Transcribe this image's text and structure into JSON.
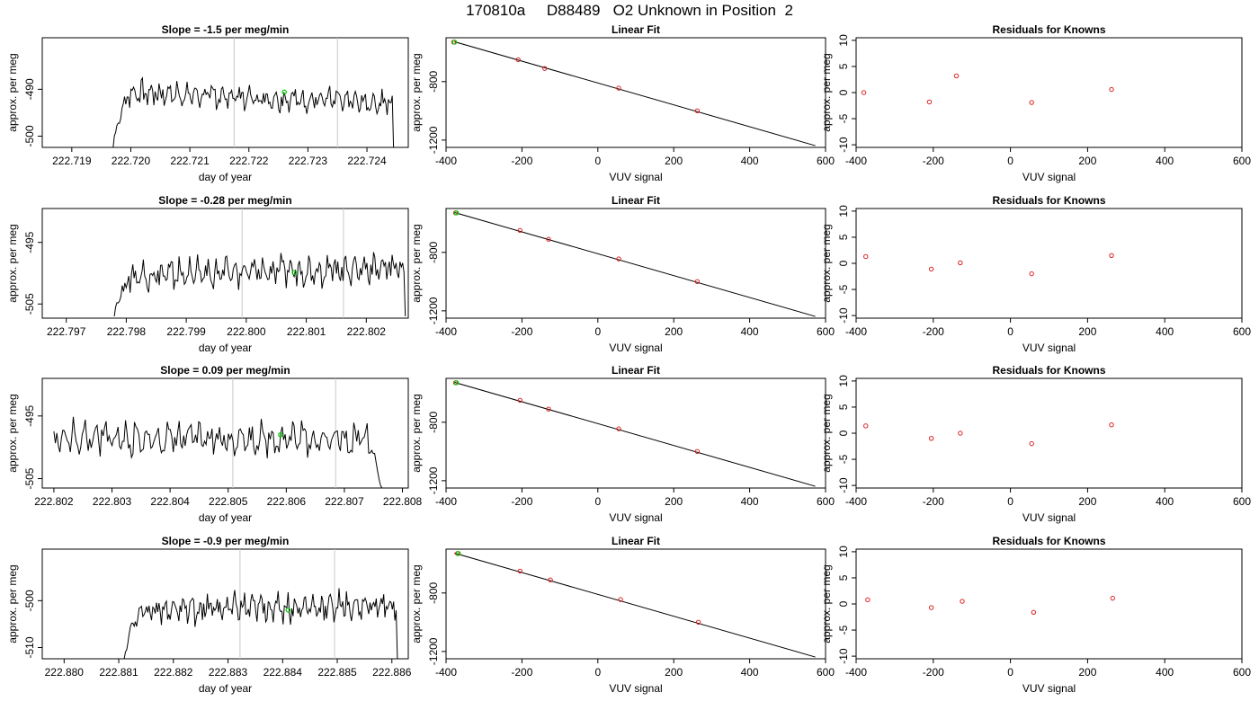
{
  "header": {
    "title": "170810a     D88489   O2 Unknown in Position  2"
  },
  "colors": {
    "series": "#000000",
    "unknown_point": "#00cc00",
    "known_points": "#dd2222",
    "marker_lines": "#c8c8c8"
  },
  "rows": [
    {
      "slope_title": "Slope =  -1.5  per meg/min"
    },
    {
      "slope_title": "Slope =  -0.28  per meg/min"
    },
    {
      "slope_title": "Slope =  0.09  per meg/min"
    },
    {
      "slope_title": "Slope =  -0.9  per meg/min"
    }
  ],
  "fit_title": "Linear Fit",
  "resid_title": "Residuals for Knowns",
  "labels": {
    "day_of_year": "day of year",
    "approx_per_meg": "approx. per meg",
    "vuv_signal": "VUV signal"
  },
  "chart_data": [
    {
      "type": "line",
      "title": "Slope =  -1.5  per meg/min",
      "xlabel": "day of year",
      "ylabel": "approx. per meg",
      "xlim": [
        222.7185,
        222.7247
      ],
      "ylim": [
        -502.4,
        -479.0
      ],
      "xticks": [
        "222.719",
        "222.720",
        "222.721",
        "222.722",
        "222.723",
        "222.724"
      ],
      "yticks": [
        "-490",
        "-500"
      ],
      "series_start": 222.7197,
      "series_end": 222.72445,
      "series_shape": {
        "base": -490.5,
        "drift": -2.5,
        "amp": 2.6,
        "rise_from": -503
      },
      "marker_lines": [
        222.72175,
        222.7235
      ],
      "unknown_point": {
        "x": 222.7226,
        "y": -490.6
      }
    },
    {
      "type": "line",
      "title": "Slope =  -0.28  per meg/min",
      "xlabel": "day of year",
      "ylabel": "approx. per meg",
      "xlim": [
        222.7966,
        222.8027
      ],
      "ylim": [
        -507.3,
        -489.5
      ],
      "xticks": [
        "222.797",
        "222.798",
        "222.799",
        "222.800",
        "222.801",
        "222.802"
      ],
      "yticks": [
        "-495",
        "-505"
      ],
      "series_start": 222.7978,
      "series_end": 222.80265,
      "series_shape": {
        "base": -500.5,
        "drift": 1.5,
        "amp": 2.3,
        "rise_from": -507
      },
      "marker_lines": [
        222.79993,
        222.80162
      ],
      "unknown_point": {
        "x": 222.8008,
        "y": -499.9
      }
    },
    {
      "type": "line",
      "title": "Slope =  0.09  per meg/min",
      "xlabel": "day of year",
      "ylabel": "approx. per meg",
      "xlim": [
        222.8018,
        222.8081
      ],
      "ylim": [
        -506.5,
        -489.0
      ],
      "xticks": [
        "222.802",
        "222.803",
        "222.804",
        "222.805",
        "222.806",
        "222.807",
        "222.808"
      ],
      "yticks": [
        "-495",
        "-505"
      ],
      "series_start": 222.802,
      "series_end": 222.80765,
      "series_shape": {
        "base": -498.6,
        "drift": 0.0,
        "amp": 2.6,
        "fall_to": -507
      },
      "marker_lines": [
        222.80508,
        222.80685
      ],
      "unknown_point": {
        "x": 222.8059,
        "y": -498.0
      }
    },
    {
      "type": "line",
      "title": "Slope =  -0.9  per meg/min",
      "xlabel": "day of year",
      "ylabel": "approx. per meg",
      "xlim": [
        222.8796,
        222.8863
      ],
      "ylim": [
        -512.4,
        -489.0
      ],
      "xticks": [
        "222.880",
        "222.881",
        "222.882",
        "222.883",
        "222.884",
        "222.885",
        "222.886"
      ],
      "yticks": [
        "-500",
        "-510"
      ],
      "series_start": 222.8811,
      "series_end": 222.8861,
      "series_shape": {
        "base": -502.0,
        "drift": 1.0,
        "amp": 3.0,
        "rise_from": -513
      },
      "marker_lines": [
        222.88322,
        222.88495
      ],
      "unknown_point": {
        "x": 222.8841,
        "y": -502.0
      }
    },
    {
      "type": "scatter",
      "title": "Linear Fit",
      "xlabel": "VUV signal",
      "ylabel": "approx. per meg",
      "xlim": [
        -400,
        600
      ],
      "ylim": [
        -1250,
        -500
      ],
      "xticks": [
        "-400",
        "-200",
        "0",
        "200",
        "400",
        "600"
      ],
      "yticks": [
        "-800",
        "-1200"
      ],
      "known_points": [
        [
          -380,
          -530
        ],
        [
          -210,
          -650
        ],
        [
          -140,
          -710
        ],
        [
          55,
          -845
        ],
        [
          262,
          -1000
        ]
      ],
      "unknown_point": [
        -380,
        -530
      ],
      "fit_line": [
        [
          -378,
          -527
        ],
        [
          573,
          -1238
        ]
      ]
    },
    {
      "type": "scatter",
      "title": "Linear Fit",
      "xlabel": "VUV signal",
      "ylabel": "approx. per meg",
      "xlim": [
        -400,
        600
      ],
      "ylim": [
        -1250,
        -500
      ],
      "xticks": [
        "-400",
        "-200",
        "0",
        "200",
        "400",
        "600"
      ],
      "yticks": [
        "-800",
        "-1200"
      ],
      "known_points": [
        [
          -375,
          -530
        ],
        [
          -205,
          -650
        ],
        [
          -130,
          -710
        ],
        [
          55,
          -845
        ],
        [
          262,
          -1000
        ]
      ],
      "unknown_point": [
        -375,
        -530
      ],
      "fit_line": [
        [
          -378,
          -527
        ],
        [
          573,
          -1238
        ]
      ]
    },
    {
      "type": "scatter",
      "title": "Linear Fit",
      "xlabel": "VUV signal",
      "ylabel": "approx. per meg",
      "xlim": [
        -400,
        600
      ],
      "ylim": [
        -1250,
        -500
      ],
      "xticks": [
        "-400",
        "-200",
        "0",
        "200",
        "400",
        "600"
      ],
      "yticks": [
        "-800",
        "-1200"
      ],
      "known_points": [
        [
          -375,
          -530
        ],
        [
          -205,
          -650
        ],
        [
          -130,
          -710
        ],
        [
          55,
          -845
        ],
        [
          262,
          -1000
        ]
      ],
      "unknown_point": [
        -375,
        -530
      ],
      "fit_line": [
        [
          -378,
          -527
        ],
        [
          573,
          -1238
        ]
      ]
    },
    {
      "type": "scatter",
      "title": "Linear Fit",
      "xlabel": "VUV signal",
      "ylabel": "approx. per meg",
      "xlim": [
        -400,
        600
      ],
      "ylim": [
        -1250,
        -500
      ],
      "xticks": [
        "-400",
        "-200",
        "0",
        "200",
        "400",
        "600"
      ],
      "yticks": [
        "-800",
        "-1200"
      ],
      "known_points": [
        [
          -370,
          -530
        ],
        [
          -205,
          -650
        ],
        [
          -125,
          -710
        ],
        [
          60,
          -845
        ],
        [
          265,
          -1000
        ]
      ],
      "unknown_point": [
        -370,
        -530
      ],
      "fit_line": [
        [
          -378,
          -527
        ],
        [
          573,
          -1238
        ]
      ]
    },
    {
      "type": "scatter",
      "title": "Residuals for Knowns",
      "xlabel": "VUV signal",
      "ylabel": "approx. per meg",
      "xlim": [
        -400,
        600
      ],
      "ylim": [
        -10.5,
        10.5
      ],
      "xticks": [
        "-400",
        "-200",
        "0",
        "200",
        "400",
        "600"
      ],
      "yticks": [
        "-10",
        "-5",
        "0",
        "5",
        "10"
      ],
      "points": [
        [
          -380,
          0.0
        ],
        [
          -210,
          -1.8
        ],
        [
          -140,
          3.2
        ],
        [
          55,
          -1.9
        ],
        [
          262,
          0.6
        ]
      ]
    },
    {
      "type": "scatter",
      "title": "Residuals for Knowns",
      "xlabel": "VUV signal",
      "ylabel": "approx. per meg",
      "xlim": [
        -400,
        600
      ],
      "ylim": [
        -10.5,
        10.5
      ],
      "xticks": [
        "-400",
        "-200",
        "0",
        "200",
        "400",
        "600"
      ],
      "yticks": [
        "-10",
        "-5",
        "0",
        "5",
        "10"
      ],
      "points": [
        [
          -375,
          1.3
        ],
        [
          -205,
          -1.1
        ],
        [
          -130,
          0.1
        ],
        [
          55,
          -2.0
        ],
        [
          262,
          1.5
        ]
      ]
    },
    {
      "type": "scatter",
      "title": "Residuals for Knowns",
      "xlabel": "VUV signal",
      "ylabel": "approx. per meg",
      "xlim": [
        -400,
        600
      ],
      "ylim": [
        -10.5,
        10.5
      ],
      "xticks": [
        "-400",
        "-200",
        "0",
        "200",
        "400",
        "600"
      ],
      "yticks": [
        "-10",
        "-5",
        "0",
        "5",
        "10"
      ],
      "points": [
        [
          -375,
          1.4
        ],
        [
          -205,
          -1.0
        ],
        [
          -130,
          0.0
        ],
        [
          55,
          -2.0
        ],
        [
          262,
          1.6
        ]
      ]
    },
    {
      "type": "scatter",
      "title": "Residuals for Knowns",
      "xlabel": "VUV signal",
      "ylabel": "approx. per meg",
      "xlim": [
        -400,
        600
      ],
      "ylim": [
        -10.5,
        10.5
      ],
      "xticks": [
        "-400",
        "-200",
        "0",
        "200",
        "400",
        "600"
      ],
      "yticks": [
        "-10",
        "-5",
        "0",
        "5",
        "10"
      ],
      "points": [
        [
          -370,
          0.8
        ],
        [
          -205,
          -0.7
        ],
        [
          -125,
          0.5
        ],
        [
          60,
          -1.6
        ],
        [
          265,
          1.1
        ]
      ]
    }
  ]
}
